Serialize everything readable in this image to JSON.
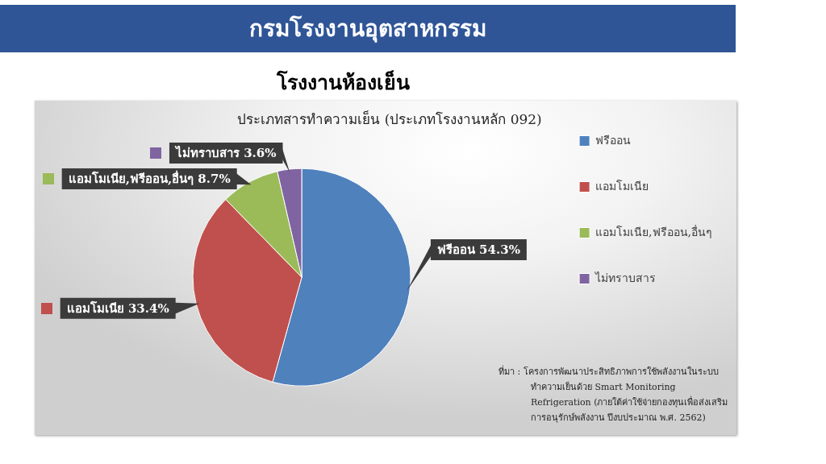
{
  "chart_data": {
    "type": "pie",
    "title": "ประเภทสารทำความเย็น (ประเภทโรงงานหลัก 092)",
    "subtitle": "โรงงานห้องเย็น",
    "categories": [
      "ฟรีออน",
      "แอมโมเนีย",
      "แอมโมเนีย,ฟรีออน,อื่นๆ",
      "ไม่ทราบสาร"
    ],
    "values": [
      54.3,
      33.4,
      8.7,
      3.6
    ],
    "colors": [
      "#4f81bd",
      "#c0504d",
      "#9bbb59",
      "#8064a2"
    ],
    "value_labels": [
      "ฟรีออน 54.3%",
      "แอมโมเนีย 33.4%",
      "แอมโมเนีย,ฟรีออน,อื่นๆ 8.7%",
      "ไม่ทราบสาร 3.6%"
    ],
    "legend": "top right",
    "annotations": [
      "กรมโรงงานอุตสาหกรรม",
      "ที่มา : โครงการพัฒนาประสิทธิภาพการใช้พลังงานในระบบทำความเย็นด้วย Smart Monitoring Refrigeration (ภายใต้ค่าใช้จ่ายกองทุนเพื่อส่งเสริมการอนุรักษ์พลังงาน ปีงบประมาณ พ.ศ. 2562)"
    ]
  }
}
